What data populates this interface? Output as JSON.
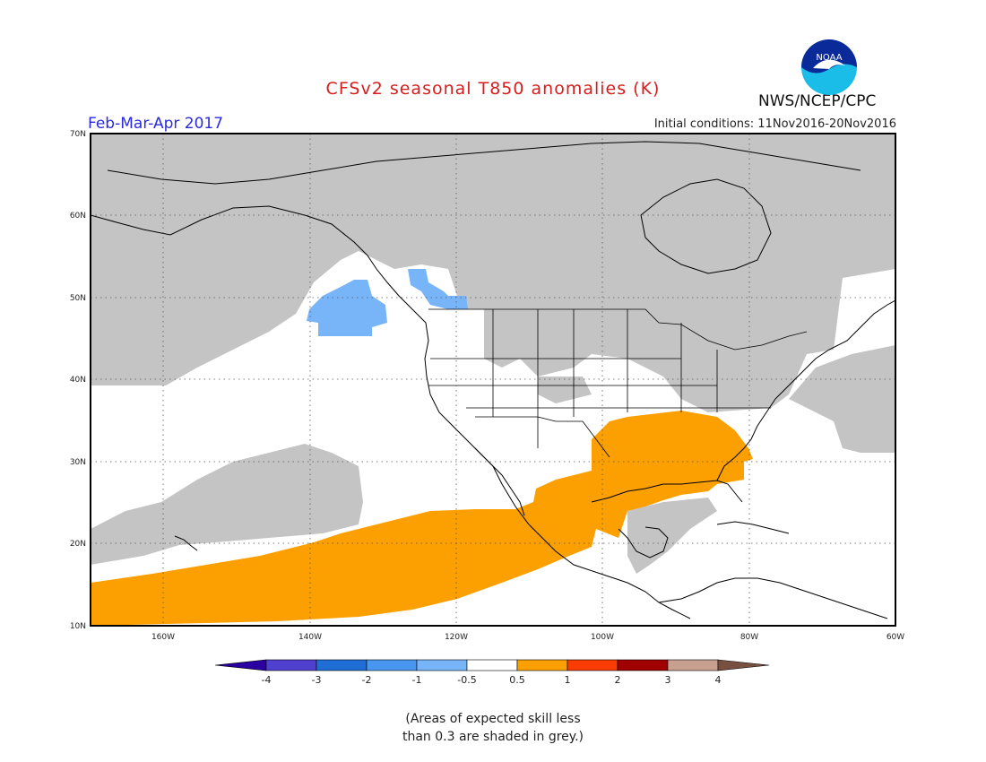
{
  "header": {
    "title": "CFSv2 seasonal T850 anomalies (K)",
    "period": "Feb-Mar-Apr 2017",
    "initial_conditions": "Initial conditions: 11Nov2016-20Nov2016",
    "agency": "NWS/NCEP/CPC",
    "logo_text": "NOAA"
  },
  "map": {
    "lat_labels": [
      "70N",
      "60N",
      "50N",
      "40N",
      "30N",
      "20N",
      "10N"
    ],
    "lon_labels": [
      "160W",
      "140W",
      "120W",
      "100W",
      "80W",
      "60W"
    ],
    "colors": {
      "skill_grey": "#c4c4c4",
      "warm_anom": "#fba000",
      "cool_anom": "#78b4f8",
      "coastline": "#000000"
    }
  },
  "colorbar": {
    "labels": [
      "-4",
      "-3",
      "-2",
      "-1",
      "-0.5",
      "0.5",
      "1",
      "2",
      "3",
      "4"
    ],
    "colors": [
      "#2a00a0",
      "#5040d0",
      "#1e6ed6",
      "#4896f0",
      "#78b4f8",
      "#ffffff",
      "#fba000",
      "#fa3c00",
      "#a00000",
      "#c8a090",
      "#785040"
    ]
  },
  "note": {
    "line1": "(Areas of expected skill less",
    "line2": "than 0.3 are shaded in grey.)"
  }
}
